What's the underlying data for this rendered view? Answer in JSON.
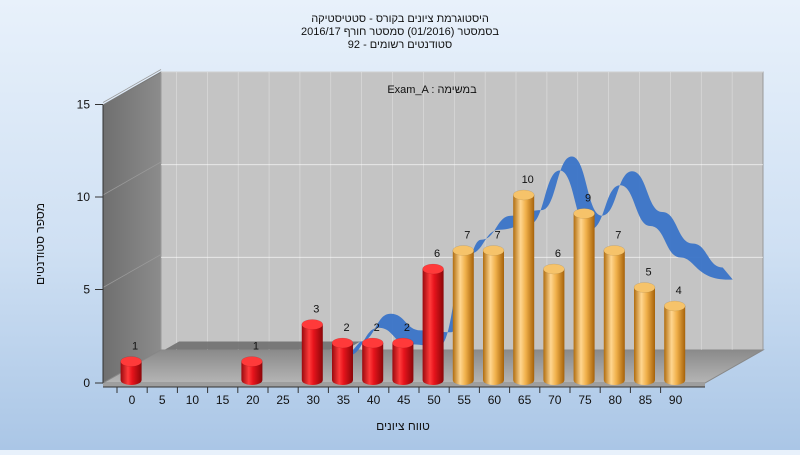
{
  "chart_data": {
    "type": "bar",
    "title_lines": [
      "היסטוגרמת ציונים בקורס - סטטיסטיקה",
      "בסמסטר  (01/2016)  סמסטר חורף 2016/17",
      "סטודנטים רשומים - 92"
    ],
    "subtitle": "Exam_A : במשימה",
    "xlabel": "טווח ציונים",
    "ylabel": "מספר סטודנטים",
    "x_ticks": [
      "0",
      "5",
      "10",
      "15",
      "20",
      "25",
      "30",
      "35",
      "40",
      "45",
      "50",
      "55",
      "60",
      "65",
      "70",
      "75",
      "80",
      "85",
      "90"
    ],
    "y_ticks": [
      "0",
      "5",
      "10",
      "15"
    ],
    "ylim": [
      0,
      15
    ],
    "bars": [
      {
        "x": 0,
        "value": 1,
        "group": "fail"
      },
      {
        "x": 20,
        "value": 1,
        "group": "fail"
      },
      {
        "x": 30,
        "value": 3,
        "group": "fail"
      },
      {
        "x": 35,
        "value": 2,
        "group": "fail"
      },
      {
        "x": 40,
        "value": 2,
        "group": "fail"
      },
      {
        "x": 45,
        "value": 2,
        "group": "fail"
      },
      {
        "x": 50,
        "value": 6,
        "group": "fail"
      },
      {
        "x": 55,
        "value": 7,
        "group": "pass"
      },
      {
        "x": 60,
        "value": 7,
        "group": "pass"
      },
      {
        "x": 65,
        "value": 10,
        "group": "pass"
      },
      {
        "x": 70,
        "value": 6,
        "group": "pass"
      },
      {
        "x": 75,
        "value": 9,
        "group": "pass"
      },
      {
        "x": 80,
        "value": 7,
        "group": "pass"
      },
      {
        "x": 85,
        "value": 5,
        "group": "pass"
      },
      {
        "x": 90,
        "value": 4,
        "group": "pass"
      }
    ],
    "trend_values": [
      1,
      1,
      1,
      1,
      1,
      1,
      1,
      2.5,
      1.6,
      1.5,
      6.5,
      7.8,
      8.1,
      11,
      7.8,
      10.2,
      8.0,
      6.3,
      5.0
    ],
    "grid": true,
    "colors": {
      "fail": "#e8141c",
      "pass": "#f0b04a",
      "trend": "#3a74c8",
      "trend_flat": "#707070"
    }
  }
}
